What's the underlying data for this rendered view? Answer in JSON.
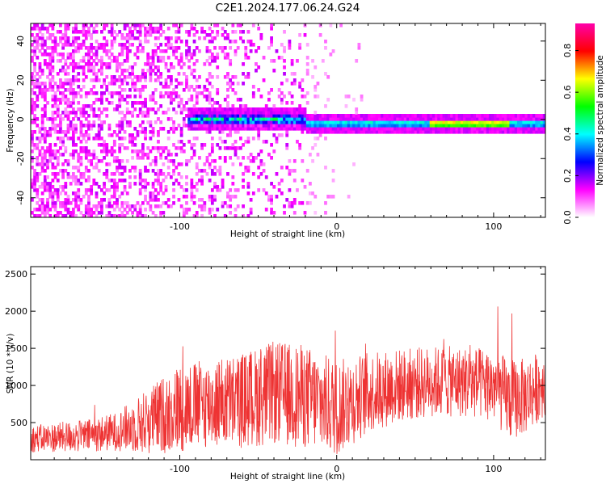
{
  "title": "C2E1.2024.177.06.24.G24",
  "chart_data": [
    {
      "type": "heatmap",
      "xlabel": "Height of straight line (km)",
      "ylabel": "Frequency (Hz)",
      "xlim": [
        -195,
        133
      ],
      "ylim": [
        -50,
        49
      ],
      "xticks": [
        -100,
        0,
        100
      ],
      "yticks": [
        -40,
        -20,
        0,
        20,
        40
      ],
      "colorbar": {
        "label": "Normalized spectral amplitude",
        "range": [
          0,
          0.93
        ],
        "ticks": [
          0.0,
          0.2,
          0.4,
          0.6,
          0.8
        ],
        "tick_labels": [
          "0.0",
          "0.2",
          "0.4",
          "0.6",
          "0.8"
        ],
        "colors": [
          "#ffffff",
          "#ff00ff",
          "#0000ff",
          "#00ffff",
          "#00ff00",
          "#ffff00",
          "#ff0000",
          "#ff00aa"
        ]
      },
      "features": {
        "noise_region_x": [
          -195,
          -20
        ],
        "carrier_line": {
          "x": [
            -20,
            133
          ],
          "freq": -2,
          "amplitude_peak": 0.85
        },
        "carrier_onset": {
          "x": [
            -95,
            -20
          ],
          "freq": 0
        }
      }
    },
    {
      "type": "line",
      "xlabel": "Height of straight line (km)",
      "ylabel": "SNR (10 * v/v)",
      "xlim": [
        -195,
        133
      ],
      "ylim": [
        0,
        2600
      ],
      "xticks": [
        -100,
        0,
        100
      ],
      "yticks": [
        500,
        1000,
        1500,
        2000,
        2500
      ],
      "color": "#ee3333",
      "series": [
        {
          "x": [
            -195,
            -180,
            -160,
            -140,
            -120,
            -100,
            -80,
            -60,
            -40,
            -20,
            0,
            20,
            40,
            60,
            80,
            100,
            110,
            120,
            133
          ],
          "y": [
            280,
            300,
            320,
            380,
            520,
            700,
            760,
            800,
            900,
            850,
            700,
            900,
            1000,
            1050,
            1050,
            1000,
            800,
            850,
            1050
          ],
          "spread": [
            180,
            200,
            220,
            260,
            450,
            600,
            600,
            650,
            700,
            700,
            650,
            550,
            500,
            480,
            480,
            500,
            550,
            520,
            450
          ]
        }
      ]
    }
  ]
}
